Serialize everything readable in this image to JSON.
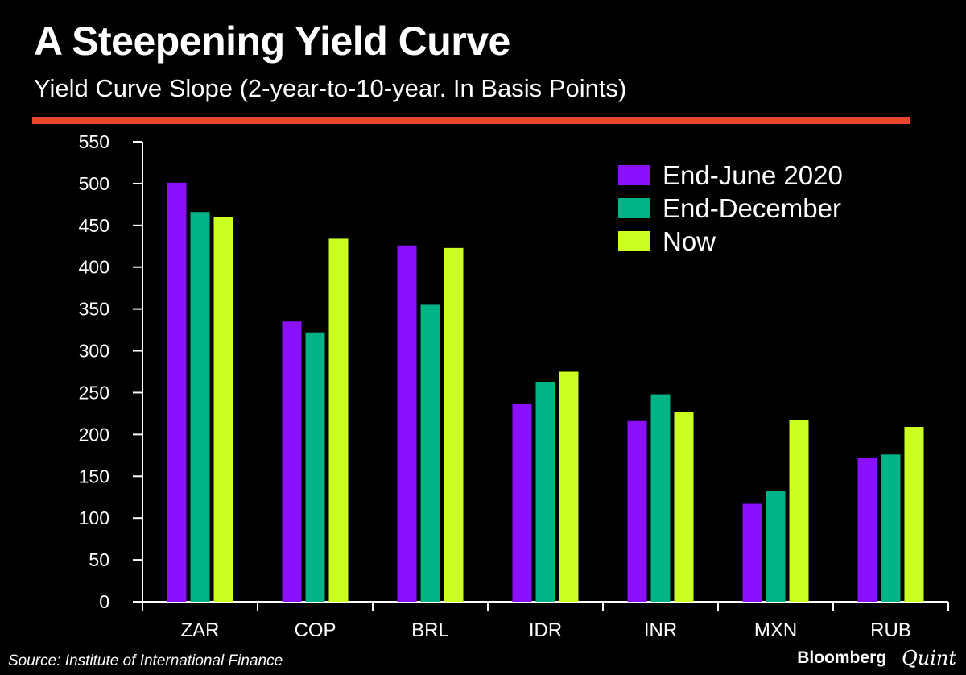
{
  "chart_data": {
    "type": "bar",
    "title": "A Steepening Yield Curve",
    "subtitle": "Yield Curve Slope (2-year-to-10-year. In Basis Points)",
    "categories": [
      "ZAR",
      "COP",
      "BRL",
      "IDR",
      "INR",
      "MXN",
      "RUB"
    ],
    "series": [
      {
        "name": "End-June 2020",
        "color": "#8b10ff",
        "values": [
          501,
          335,
          426,
          237,
          216,
          117,
          172
        ]
      },
      {
        "name": "End-December",
        "color": "#00b386",
        "values": [
          466,
          322,
          355,
          263,
          248,
          132,
          176
        ]
      },
      {
        "name": "Now",
        "color": "#ccff22",
        "values": [
          460,
          434,
          423,
          275,
          227,
          217,
          209
        ]
      }
    ],
    "ylim": [
      0,
      550
    ],
    "yticks": [
      0,
      50,
      100,
      150,
      200,
      250,
      300,
      350,
      400,
      450,
      500,
      550
    ],
    "grid": false,
    "legend_position": "top-right",
    "xlabel": "",
    "ylabel": ""
  },
  "source": "Source: Institute of International Finance",
  "brand": {
    "primary": "Bloomberg",
    "secondary": "Quint"
  }
}
